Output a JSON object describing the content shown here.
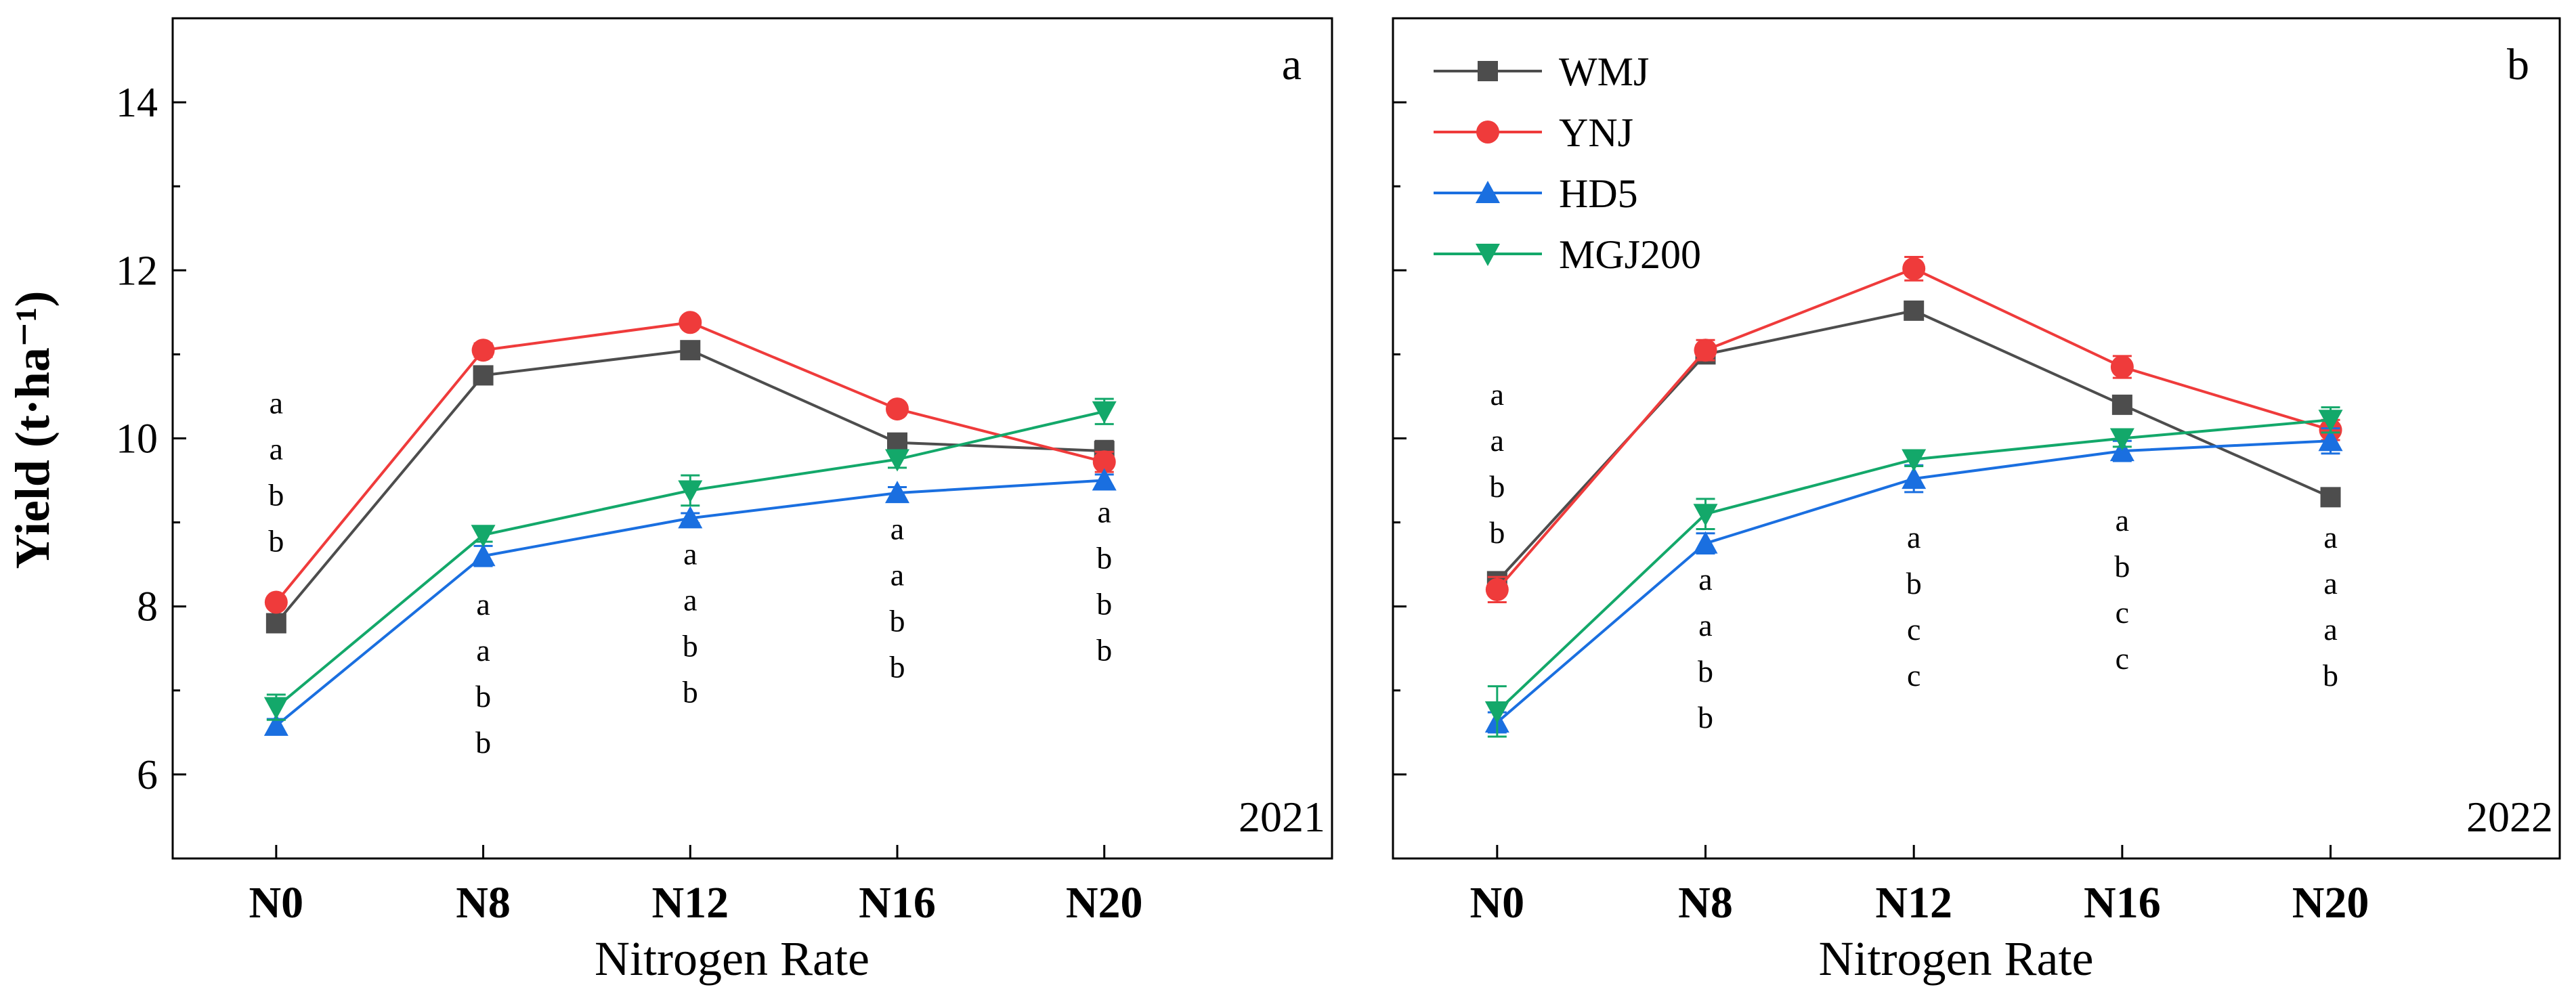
{
  "colors": {
    "WMJ": "#4d4d4d",
    "YNJ": "#ef3b3b",
    "HD5": "#1a6fe0",
    "MGJ200": "#13a86a"
  },
  "chart_data": [
    {
      "type": "line",
      "panel": "a",
      "year": "2021",
      "xlabel": "Nitrogen Rate",
      "ylabel": "Yield (t·ha⁻¹)",
      "categories": [
        "N0",
        "N8",
        "N12",
        "N16",
        "N20"
      ],
      "ylim": [
        5,
        15
      ],
      "yticks": [
        6,
        8,
        10,
        12,
        14
      ],
      "grid": false,
      "series": [
        {
          "name": "WMJ",
          "marker": "square",
          "values": [
            7.8,
            10.75,
            11.05,
            9.95,
            9.85
          ],
          "errors": [
            0.08,
            0.08,
            0.06,
            0.07,
            0.12
          ]
        },
        {
          "name": "YNJ",
          "marker": "circle",
          "values": [
            8.05,
            11.05,
            11.38,
            10.35,
            9.72
          ],
          "errors": [
            0.06,
            0.08,
            0.06,
            0.07,
            0.12
          ]
        },
        {
          "name": "HD5",
          "marker": "triangle-up",
          "values": [
            6.58,
            8.6,
            9.05,
            9.35,
            9.5
          ],
          "errors": [
            0.08,
            0.12,
            0.06,
            0.07,
            0.07
          ]
        },
        {
          "name": "MGJ200",
          "marker": "triangle-down",
          "values": [
            6.8,
            8.85,
            9.38,
            9.75,
            10.32
          ],
          "errors": [
            0.15,
            0.08,
            0.18,
            0.1,
            0.15
          ]
        }
      ],
      "significance": [
        [
          "a",
          "a",
          "b",
          "b"
        ],
        [
          "a",
          "a",
          "b",
          "b"
        ],
        [
          "a",
          "a",
          "b",
          "b"
        ],
        [
          "a",
          "a",
          "b",
          "b"
        ],
        [
          "a",
          "b",
          "b",
          "b"
        ]
      ],
      "significance_top_y": [
        10.3,
        7.9,
        8.5,
        8.8,
        9.0
      ]
    },
    {
      "type": "line",
      "panel": "b",
      "year": "2022",
      "xlabel": "Nitrogen Rate",
      "categories": [
        "N0",
        "N8",
        "N12",
        "N16",
        "N20"
      ],
      "ylim": [
        5,
        15
      ],
      "yticks": [
        6,
        8,
        10,
        12,
        14
      ],
      "grid": false,
      "legend_position": "top-left",
      "series": [
        {
          "name": "WMJ",
          "marker": "square",
          "values": [
            8.3,
            11.0,
            11.52,
            10.4,
            9.3
          ],
          "errors": [
            0.08,
            0.08,
            0.06,
            0.1,
            0.1
          ]
        },
        {
          "name": "YNJ",
          "marker": "circle",
          "values": [
            8.2,
            11.05,
            12.02,
            10.85,
            10.1
          ],
          "errors": [
            0.15,
            0.12,
            0.14,
            0.13,
            0.12
          ]
        },
        {
          "name": "HD5",
          "marker": "triangle-up",
          "values": [
            6.62,
            8.75,
            9.52,
            9.85,
            9.97
          ],
          "errors": [
            0.12,
            0.12,
            0.16,
            0.12,
            0.15
          ]
        },
        {
          "name": "MGJ200",
          "marker": "triangle-down",
          "values": [
            6.75,
            9.1,
            9.75,
            10.0,
            10.22
          ],
          "errors": [
            0.3,
            0.18,
            0.08,
            0.1,
            0.15
          ]
        }
      ],
      "significance": [
        [
          "a",
          "a",
          "b",
          "b"
        ],
        [
          "a",
          "a",
          "b",
          "b"
        ],
        [
          "a",
          "b",
          "c",
          "c"
        ],
        [
          "a",
          "b",
          "c",
          "c"
        ],
        [
          "a",
          "a",
          "a",
          "b"
        ]
      ],
      "significance_top_y": [
        10.4,
        8.2,
        8.7,
        8.9,
        8.7
      ]
    }
  ]
}
